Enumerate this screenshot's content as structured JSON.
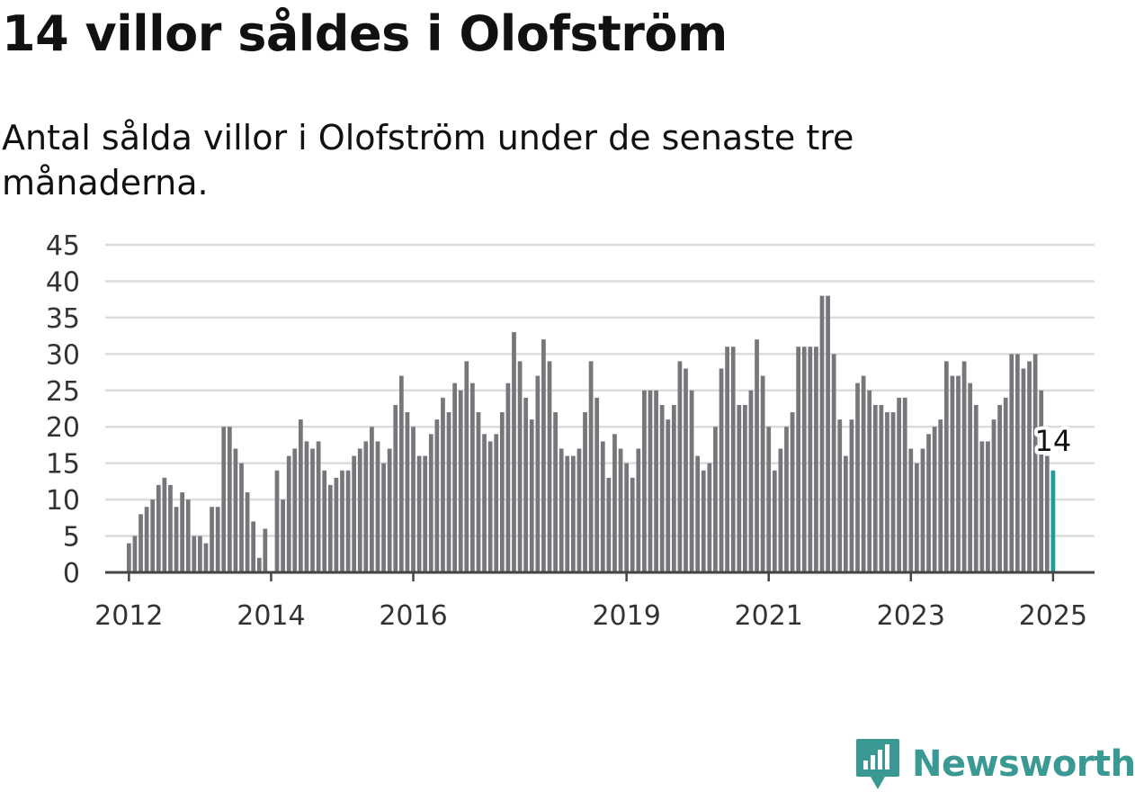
{
  "header": {
    "title": "14 villor såldes i Olofström",
    "subtitle": "Antal sålda villor i Olofström under de senaste tre månaderna."
  },
  "brand": {
    "name": "Newsworthy",
    "icon": "newsworthy-logo-icon"
  },
  "colors": {
    "bar": "#77767b",
    "highlight": "#1a9e96",
    "grid": "#dcdcdc",
    "axis": "#444444",
    "brand": "#3a9a93"
  },
  "chart_data": {
    "type": "bar",
    "title": "14 villor såldes i Olofström",
    "subtitle": "Antal sålda villor i Olofström under de senaste tre månaderna.",
    "xlabel": "",
    "ylabel": "",
    "ylim": [
      0,
      45
    ],
    "yticks": [
      0,
      5,
      10,
      15,
      20,
      25,
      30,
      35,
      40,
      45
    ],
    "xlim": [
      "2011-09",
      "2025-08"
    ],
    "xticks": [
      {
        "label": "2012",
        "x": "2012-01"
      },
      {
        "label": "2014",
        "x": "2014-01"
      },
      {
        "label": "2016",
        "x": "2016-01"
      },
      {
        "label": "2019",
        "x": "2019-01"
      },
      {
        "label": "2021",
        "x": "2021-01"
      },
      {
        "label": "2023",
        "x": "2023-01"
      },
      {
        "label": "2025",
        "x": "2025-01"
      }
    ],
    "grid": true,
    "highlight": {
      "x": "2025-01",
      "value": 14,
      "label": "14"
    },
    "x": [
      "2012-01",
      "2012-02",
      "2012-03",
      "2012-04",
      "2012-05",
      "2012-06",
      "2012-07",
      "2012-08",
      "2012-09",
      "2012-10",
      "2012-11",
      "2012-12",
      "2013-01",
      "2013-02",
      "2013-03",
      "2013-04",
      "2013-05",
      "2013-06",
      "2013-07",
      "2013-08",
      "2013-09",
      "2013-10",
      "2013-11",
      "2013-12",
      "2014-01",
      "2014-02",
      "2014-03",
      "2014-04",
      "2014-05",
      "2014-06",
      "2014-07",
      "2014-08",
      "2014-09",
      "2014-10",
      "2014-11",
      "2014-12",
      "2015-01",
      "2015-02",
      "2015-03",
      "2015-04",
      "2015-05",
      "2015-06",
      "2015-07",
      "2015-08",
      "2015-09",
      "2015-10",
      "2015-11",
      "2015-12",
      "2016-01",
      "2016-02",
      "2016-03",
      "2016-04",
      "2016-05",
      "2016-06",
      "2016-07",
      "2016-08",
      "2016-09",
      "2016-10",
      "2016-11",
      "2016-12",
      "2017-01",
      "2017-02",
      "2017-03",
      "2017-04",
      "2017-05",
      "2017-06",
      "2017-07",
      "2017-08",
      "2017-09",
      "2017-10",
      "2017-11",
      "2017-12",
      "2018-01",
      "2018-02",
      "2018-03",
      "2018-04",
      "2018-05",
      "2018-06",
      "2018-07",
      "2018-08",
      "2018-09",
      "2018-10",
      "2018-11",
      "2018-12",
      "2019-01",
      "2019-02",
      "2019-03",
      "2019-04",
      "2019-05",
      "2019-06",
      "2019-07",
      "2019-08",
      "2019-09",
      "2019-10",
      "2019-11",
      "2019-12",
      "2020-01",
      "2020-02",
      "2020-03",
      "2020-04",
      "2020-05",
      "2020-06",
      "2020-07",
      "2020-08",
      "2020-09",
      "2020-10",
      "2020-11",
      "2020-12",
      "2021-01",
      "2021-02",
      "2021-03",
      "2021-04",
      "2021-05",
      "2021-06",
      "2021-07",
      "2021-08",
      "2021-09",
      "2021-10",
      "2021-11",
      "2021-12",
      "2022-01",
      "2022-02",
      "2022-03",
      "2022-04",
      "2022-05",
      "2022-06",
      "2022-07",
      "2022-08",
      "2022-09",
      "2022-10",
      "2022-11",
      "2022-12",
      "2023-01",
      "2023-02",
      "2023-03",
      "2023-04",
      "2023-05",
      "2023-06",
      "2023-07",
      "2023-08",
      "2023-09",
      "2023-10",
      "2023-11",
      "2023-12",
      "2024-01",
      "2024-02",
      "2024-03",
      "2024-04",
      "2024-05",
      "2024-06",
      "2024-07",
      "2024-08",
      "2024-09",
      "2024-10",
      "2024-11",
      "2024-12",
      "2025-01"
    ],
    "values": [
      4,
      5,
      8,
      9,
      10,
      12,
      13,
      12,
      9,
      11,
      10,
      5,
      5,
      4,
      9,
      9,
      20,
      20,
      17,
      15,
      11,
      7,
      2,
      6,
      0,
      14,
      10,
      16,
      17,
      21,
      18,
      17,
      18,
      14,
      12,
      13,
      14,
      14,
      16,
      17,
      18,
      20,
      18,
      15,
      17,
      23,
      27,
      22,
      20,
      16,
      16,
      19,
      21,
      24,
      22,
      26,
      25,
      29,
      26,
      22,
      19,
      18,
      19,
      22,
      26,
      33,
      29,
      24,
      21,
      27,
      32,
      29,
      22,
      17,
      16,
      16,
      17,
      22,
      29,
      24,
      18,
      13,
      19,
      17,
      15,
      13,
      17,
      25,
      25,
      25,
      23,
      21,
      23,
      29,
      28,
      25,
      16,
      14,
      15,
      20,
      28,
      31,
      31,
      23,
      23,
      25,
      32,
      27,
      20,
      14,
      17,
      20,
      22,
      31,
      31,
      31,
      31,
      38,
      38,
      30,
      21,
      16,
      21,
      26,
      27,
      25,
      23,
      23,
      22,
      22,
      24,
      24,
      17,
      15,
      17,
      19,
      20,
      21,
      29,
      27,
      27,
      29,
      26,
      23,
      18,
      18,
      21,
      23,
      24,
      30,
      30,
      28,
      29,
      30,
      25,
      16,
      14
    ]
  }
}
